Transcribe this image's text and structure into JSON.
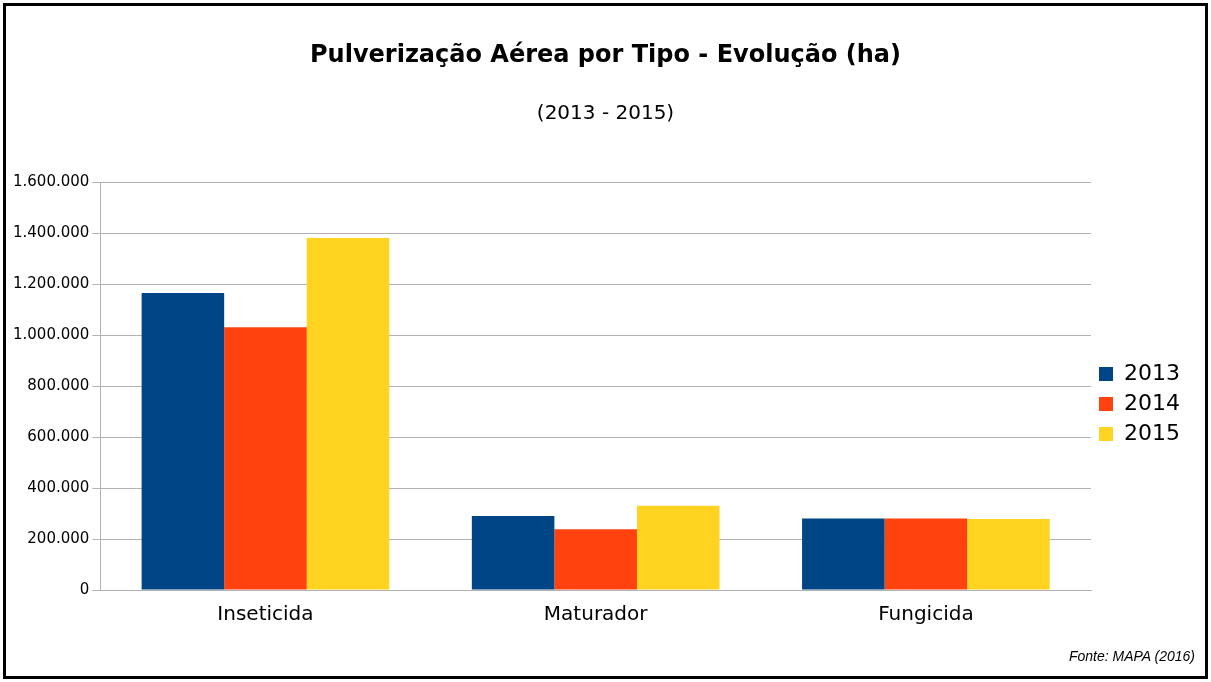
{
  "chart_data": {
    "type": "bar",
    "title": "Pulverização Aérea por Tipo - Evolução (ha)",
    "subtitle": "(2013 - 2015)",
    "categories": [
      "Inseticida",
      "Maturador",
      "Fungicida"
    ],
    "series": [
      {
        "name": "2013",
        "color": "#004586",
        "values": [
          1165000,
          290000,
          280000
        ]
      },
      {
        "name": "2014",
        "color": "#ff420e",
        "values": [
          1030000,
          238000,
          280000
        ]
      },
      {
        "name": "2015",
        "color": "#ffd320",
        "values": [
          1380000,
          330000,
          278000
        ]
      }
    ],
    "ylim": [
      0,
      1600000
    ],
    "yticks": [
      {
        "value": 0,
        "label": "0"
      },
      {
        "value": 200000,
        "label": "200.000"
      },
      {
        "value": 400000,
        "label": "400.000"
      },
      {
        "value": 600000,
        "label": "600.000"
      },
      {
        "value": 800000,
        "label": "800.000"
      },
      {
        "value": 1000000,
        "label": "1.000.000"
      },
      {
        "value": 1200000,
        "label": "1.200.000"
      },
      {
        "value": 1400000,
        "label": "1.400.000"
      },
      {
        "value": 1600000,
        "label": "1.600.000"
      }
    ],
    "grid": "y",
    "legend": "right",
    "annotations": [
      "Fonte: MAPA (2016)"
    ]
  }
}
